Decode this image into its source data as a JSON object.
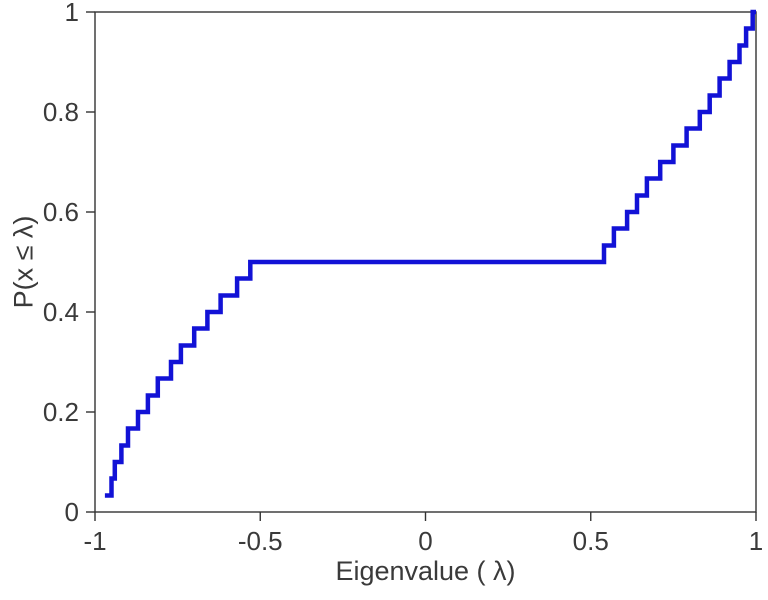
{
  "chart_data": {
    "type": "line",
    "subtype": "ecdf-step",
    "title": "",
    "xlabel": "Eigenvalue ( λ)",
    "ylabel": "P(x ≤ λ)",
    "xlim": [
      -1,
      1
    ],
    "ylim": [
      0,
      1
    ],
    "grid": false,
    "legend": "none",
    "x_ticks": [
      -1,
      -0.5,
      0,
      0.5,
      1
    ],
    "x_tick_labels": [
      "-1",
      "-0.5",
      "0",
      "0.5",
      "1"
    ],
    "y_ticks": [
      0,
      0.2,
      0.4,
      0.6,
      0.8,
      1
    ],
    "y_tick_labels": [
      "0",
      "0.2",
      "0.4",
      "0.6",
      "0.8",
      "1"
    ],
    "line_color": "#1212d6",
    "line_width": 4.5,
    "axis_color": "#333333",
    "tick_label_color": "#3a3a3a",
    "n_points": 30,
    "plateau": {
      "y": 0.5,
      "x_from": -0.53,
      "x_to": 0.54
    },
    "eigenvalues": [
      -0.97,
      -0.95,
      -0.94,
      -0.92,
      -0.9,
      -0.87,
      -0.84,
      -0.81,
      -0.77,
      -0.74,
      -0.7,
      -0.66,
      -0.62,
      -0.57,
      -0.53,
      0.54,
      0.57,
      0.61,
      0.64,
      0.67,
      0.71,
      0.75,
      0.79,
      0.83,
      0.86,
      0.89,
      0.92,
      0.95,
      0.97,
      0.99
    ],
    "cumulative_probabilities": [
      0.033,
      0.067,
      0.1,
      0.133,
      0.167,
      0.2,
      0.233,
      0.267,
      0.3,
      0.333,
      0.367,
      0.4,
      0.433,
      0.467,
      0.5,
      0.533,
      0.567,
      0.6,
      0.633,
      0.667,
      0.7,
      0.733,
      0.767,
      0.8,
      0.833,
      0.867,
      0.9,
      0.933,
      0.967,
      1.0
    ]
  }
}
